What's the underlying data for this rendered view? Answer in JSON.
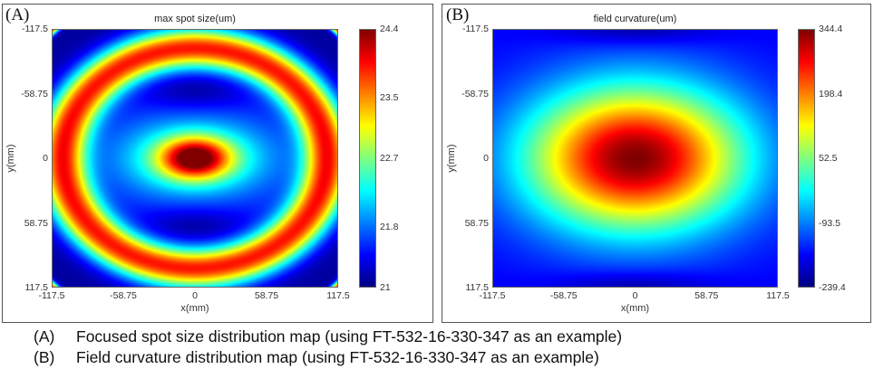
{
  "chart_data": [
    {
      "type": "heatmap",
      "panel_label": "(A)",
      "title": "max spot size(um)",
      "xlabel": "x(mm)",
      "ylabel": "y(mm)",
      "xlim": [
        -117.5,
        117.5
      ],
      "ylim": [
        -117.5,
        117.5
      ],
      "y_direction": "reversed (-117.5 at top)",
      "x_ticks": [
        "-117.5",
        "-58.75",
        "0",
        "58.75",
        "117.5"
      ],
      "y_ticks": [
        "-117.5",
        "-58.75",
        "0",
        "58.75",
        "117.5"
      ],
      "colormap": "jet",
      "clim": [
        21,
        24.4
      ],
      "colorbar_ticks": [
        "24.4",
        "23.5",
        "22.7",
        "21.8",
        "21"
      ],
      "z_at_ticks": [
        [
          24.0,
          22.5,
          23.4,
          22.5,
          24.0
        ],
        [
          23.9,
          21.7,
          21.1,
          21.7,
          23.9
        ],
        [
          23.9,
          22.0,
          24.4,
          22.0,
          23.9
        ],
        [
          23.9,
          21.7,
          21.1,
          21.7,
          23.9
        ],
        [
          24.0,
          22.5,
          23.4,
          22.5,
          24.0
        ]
      ]
    },
    {
      "type": "heatmap",
      "panel_label": "(B)",
      "title": "field curvature(um)",
      "xlabel": "x(mm)",
      "ylabel": "y(mm)",
      "xlim": [
        -117.5,
        117.5
      ],
      "ylim": [
        -117.5,
        117.5
      ],
      "y_direction": "reversed (-117.5 at top)",
      "x_ticks": [
        "-117.5",
        "-58.75",
        "0",
        "58.75",
        "117.5"
      ],
      "y_ticks": [
        "-117.5",
        "-58.75",
        "0",
        "58.75",
        "117.5"
      ],
      "colormap": "jet",
      "clim": [
        -239.4,
        344.4
      ],
      "colorbar_ticks": [
        "344.4",
        "198.4",
        "52.5",
        "-93.5",
        "-239.4"
      ],
      "z_at_ticks": [
        [
          -170,
          -200,
          -239.4,
          -200,
          -170
        ],
        [
          -160,
          10,
          150,
          10,
          -160
        ],
        [
          -110,
          160,
          344.4,
          160,
          -110
        ],
        [
          -160,
          10,
          150,
          10,
          -160
        ],
        [
          -170,
          -200,
          -239.4,
          -200,
          -170
        ]
      ]
    }
  ],
  "captions": [
    {
      "tag": "(A)",
      "text": "Focused spot size distribution map (using FT-532-16-330-347 as an example)"
    },
    {
      "tag": "(B)",
      "text": "Field curvature distribution map (using FT-532-16-330-347 as an example)"
    }
  ]
}
